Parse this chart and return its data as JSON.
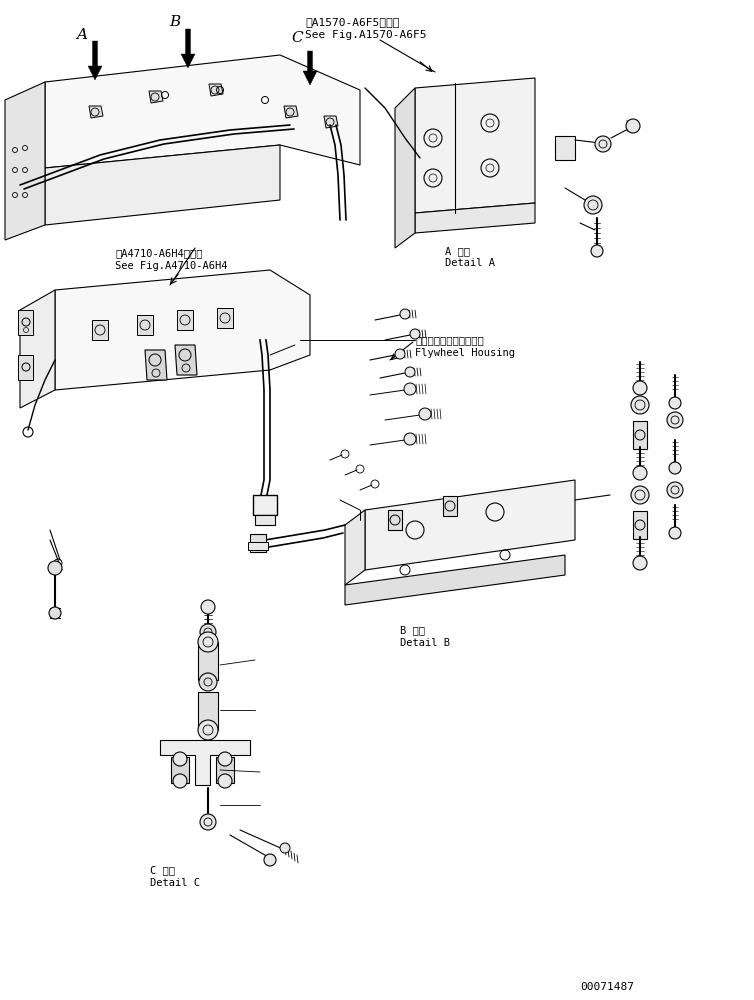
{
  "background_color": "#ffffff",
  "line_color": "#000000",
  "text_color": "#000000",
  "part_number": "00071487",
  "labels": {
    "label_A": "A",
    "label_B": "B",
    "label_C": "C",
    "ref1_jp": "第A1570-A6F5図参照",
    "ref1_en": "See Fig.A1570-A6F5",
    "ref2_jp": "第A4710-A6H4図参照",
    "ref2_en": "See Fig.A4710-A6H4",
    "flywheel_jp": "フライホイルハウジング",
    "flywheel_en": "Flywheel Housing",
    "detail_A_jp": "A 詳細",
    "detail_A_en": "Detail A",
    "detail_B_jp": "B 詳細",
    "detail_B_en": "Detail B",
    "detail_C_jp": "C 詳細",
    "detail_C_en": "Detail C"
  },
  "fig_width": 7.54,
  "fig_height": 10.0,
  "dpi": 100
}
